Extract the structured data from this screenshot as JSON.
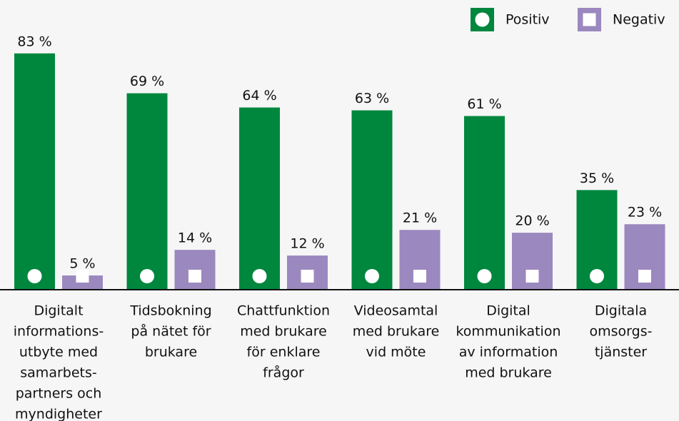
{
  "chart_data": {
    "type": "bar",
    "categories": [
      [
        "Digitalt",
        "informations-",
        "utbyte med",
        "samarbets-",
        "partners och",
        "myndigheter"
      ],
      [
        "Tidsbokning",
        "på nätet för",
        "brukare"
      ],
      [
        "Chattfunktion",
        "med brukare",
        "för enklare",
        "frågor"
      ],
      [
        "Videosamtal",
        "med brukare",
        "vid möte"
      ],
      [
        "Digital",
        "kommunikation",
        "av information",
        "med brukare"
      ],
      [
        "Digitala",
        "omsorgs-",
        "tjänster"
      ]
    ],
    "series": [
      {
        "name": "Positiv",
        "color": "#00873e",
        "values": [
          83,
          69,
          64,
          63,
          61,
          35
        ],
        "value_labels": [
          "83 %",
          "69 %",
          "64 %",
          "63 %",
          "61 %",
          "35 %"
        ]
      },
      {
        "name": "Negativ",
        "color": "#9b88bf",
        "values": [
          5,
          14,
          12,
          21,
          20,
          23
        ],
        "value_labels": [
          "5 %",
          "14 %",
          "12 %",
          "21 %",
          "20 %",
          "23 %"
        ]
      }
    ],
    "ylim": [
      0,
      100
    ],
    "legend": "top-right"
  }
}
